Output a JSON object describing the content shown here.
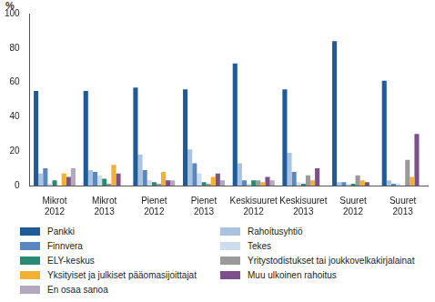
{
  "chart_data": {
    "type": "bar",
    "ylabel": "%",
    "categories": [
      "Mikrot 2012",
      "Mikrot 2013",
      "Pienet 2012",
      "Pienet 2013",
      "Keskisuuret 2012",
      "Keskisuuret 2013",
      "Suuret 2012",
      "Suuret 2013"
    ],
    "series": [
      {
        "name": "Pankki",
        "color": "#1f5b96",
        "values": [
          55,
          55,
          57,
          56,
          71,
          56,
          84,
          61
        ]
      },
      {
        "name": "Rahoitusyhtiö",
        "color": "#a9c3e0",
        "values": [
          7,
          9,
          18,
          21,
          13,
          19,
          2,
          3
        ]
      },
      {
        "name": "Finnvera",
        "color": "#5b86c0",
        "values": [
          10,
          8,
          9,
          13,
          3,
          8,
          2,
          1
        ]
      },
      {
        "name": "Tekes",
        "color": "#cfdcee",
        "values": [
          1,
          6,
          3,
          7,
          1,
          2,
          1,
          1
        ]
      },
      {
        "name": "ELY-keskus",
        "color": "#2b8a74",
        "values": [
          3,
          4,
          2,
          2,
          3,
          1,
          1,
          0
        ]
      },
      {
        "name": "Yritystodistukset tai joukkovelkakirjalainat",
        "color": "#9a9a9a",
        "values": [
          0,
          1,
          1,
          1,
          3,
          6,
          6,
          15
        ]
      },
      {
        "name": "Yksityiset ja julkiset pääomasijoittajat",
        "color": "#f3b133",
        "values": [
          7,
          12,
          8,
          5,
          2,
          3,
          3,
          5
        ]
      },
      {
        "name": "Muu ulkoinen rahoitus",
        "color": "#7d4f8c",
        "values": [
          5,
          7,
          3,
          7,
          5,
          10,
          2,
          30
        ]
      },
      {
        "name": "En osaa sanoa",
        "color": "#b3a9bd",
        "values": [
          10,
          0,
          3,
          3,
          3,
          0,
          0,
          0
        ]
      }
    ],
    "ylim": [
      0,
      100
    ],
    "yticks": [
      0,
      20,
      40,
      60,
      80,
      100
    ],
    "grid": false,
    "legend": "bottom"
  }
}
